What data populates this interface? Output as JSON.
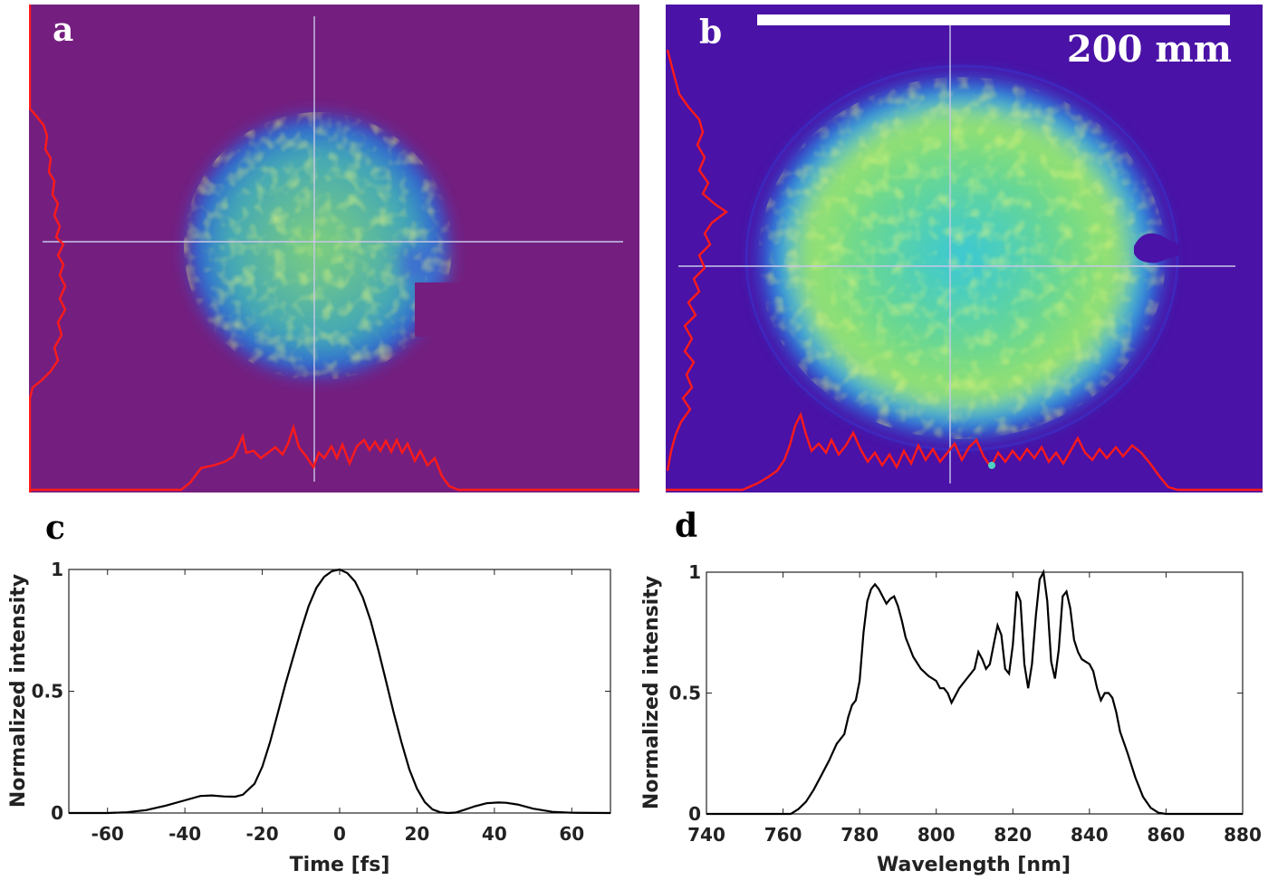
{
  "panels": {
    "a": {
      "letter": "a"
    },
    "b": {
      "letter": "b",
      "scale_bar_label": "200 mm"
    },
    "c": {
      "letter": "c"
    },
    "d": {
      "letter": "d"
    }
  },
  "colors": {
    "background_a": "#741f7f",
    "background_b": "#4a12a6",
    "profile_line": "#ff1a1a",
    "crosshair": "#c8c8e8",
    "curve": "#000000"
  },
  "chart_data": [
    {
      "type": "heatmap",
      "panel": "a",
      "description_values": "beam intensity image with crosshair and red lineout profiles"
    },
    {
      "type": "heatmap",
      "panel": "b",
      "scale_bar": "200 mm"
    },
    {
      "type": "line",
      "panel": "c",
      "xlabel": "Time [fs]",
      "ylabel": "Normalized intensity",
      "xlim": [
        -70,
        70
      ],
      "ylim": [
        0,
        1
      ],
      "xticks": [
        -60,
        -40,
        -20,
        0,
        20,
        40,
        60
      ],
      "yticks": [
        0,
        0.5,
        1
      ],
      "ytick_labels": [
        "0",
        "0.5",
        "1"
      ],
      "x": [
        -70,
        -60,
        -55,
        -50,
        -45,
        -40,
        -36,
        -33,
        -30,
        -27,
        -25,
        -22,
        -20,
        -18,
        -16,
        -14,
        -12,
        -10,
        -8,
        -6,
        -4,
        -2,
        0,
        2,
        4,
        6,
        8,
        10,
        12,
        14,
        16,
        18,
        20,
        22,
        24,
        26,
        28,
        30,
        32,
        35,
        38,
        41,
        43,
        46,
        50,
        55,
        60,
        70
      ],
      "y": [
        0,
        0,
        0.003,
        0.012,
        0.03,
        0.052,
        0.07,
        0.072,
        0.068,
        0.067,
        0.075,
        0.12,
        0.19,
        0.29,
        0.41,
        0.53,
        0.64,
        0.75,
        0.85,
        0.925,
        0.97,
        0.993,
        1.0,
        0.985,
        0.95,
        0.885,
        0.79,
        0.67,
        0.54,
        0.41,
        0.29,
        0.18,
        0.1,
        0.045,
        0.015,
        0.003,
        0.0,
        0.002,
        0.012,
        0.028,
        0.04,
        0.043,
        0.042,
        0.035,
        0.018,
        0.005,
        0.001,
        0
      ]
    },
    {
      "type": "line",
      "panel": "d",
      "xlabel": "Wavelength [nm]",
      "ylabel": "Normalized intensity",
      "xlim": [
        740,
        880
      ],
      "ylim": [
        0,
        1
      ],
      "xticks": [
        740,
        760,
        780,
        800,
        820,
        840,
        860,
        880
      ],
      "yticks": [
        0,
        0.5,
        1
      ],
      "ytick_labels": [
        "0",
        "0.5",
        "1"
      ],
      "x": [
        740,
        762,
        764,
        766,
        768,
        770,
        772,
        774,
        776,
        777,
        778,
        779,
        780,
        781,
        782,
        783,
        784,
        785,
        786,
        787,
        788,
        789,
        790,
        791,
        792,
        794,
        796,
        798,
        800,
        801,
        802,
        803,
        804,
        806,
        808,
        810,
        811,
        812,
        813,
        814,
        815,
        816,
        817,
        818,
        819,
        820,
        821,
        822,
        823,
        824,
        825,
        826,
        827,
        828,
        829,
        830,
        831,
        832,
        833,
        834,
        835,
        836,
        837,
        838,
        839,
        840,
        841,
        842,
        843,
        844,
        845,
        846,
        847,
        848,
        850,
        852,
        854,
        856,
        858,
        860,
        862,
        880
      ],
      "y": [
        0,
        0.0,
        0.02,
        0.05,
        0.1,
        0.16,
        0.22,
        0.29,
        0.33,
        0.4,
        0.45,
        0.47,
        0.55,
        0.75,
        0.88,
        0.93,
        0.95,
        0.93,
        0.9,
        0.87,
        0.89,
        0.9,
        0.86,
        0.8,
        0.73,
        0.65,
        0.6,
        0.57,
        0.55,
        0.52,
        0.52,
        0.5,
        0.46,
        0.52,
        0.56,
        0.6,
        0.67,
        0.64,
        0.6,
        0.62,
        0.7,
        0.78,
        0.74,
        0.6,
        0.58,
        0.7,
        0.92,
        0.88,
        0.62,
        0.52,
        0.62,
        0.82,
        0.97,
        1.0,
        0.88,
        0.63,
        0.56,
        0.68,
        0.9,
        0.92,
        0.85,
        0.72,
        0.67,
        0.64,
        0.63,
        0.62,
        0.59,
        0.52,
        0.47,
        0.5,
        0.5,
        0.48,
        0.42,
        0.34,
        0.25,
        0.15,
        0.07,
        0.025,
        0.005,
        0.0,
        0,
        0
      ]
    }
  ]
}
